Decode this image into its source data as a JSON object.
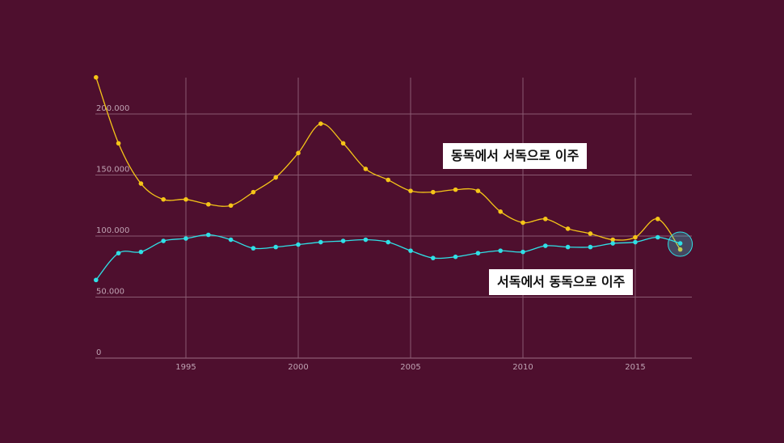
{
  "chart_data": {
    "type": "line",
    "x": [
      1991,
      1992,
      1993,
      1994,
      1995,
      1996,
      1997,
      1998,
      1999,
      2000,
      2001,
      2002,
      2003,
      2004,
      2005,
      2006,
      2007,
      2008,
      2009,
      2010,
      2011,
      2012,
      2013,
      2014,
      2015,
      2016,
      2017
    ],
    "series": [
      {
        "name": "동독에서 서독으로 이주",
        "color": "#f5c518",
        "values": [
          230000,
          176000,
          143000,
          130000,
          130000,
          126000,
          125000,
          136000,
          148000,
          168000,
          192000,
          176000,
          155000,
          146000,
          137000,
          136000,
          138000,
          137000,
          120000,
          111000,
          114000,
          106000,
          102000,
          97000,
          99000,
          114000,
          89000
        ]
      },
      {
        "name": "서독에서 동독으로 이주",
        "color": "#2fe0e6",
        "values": [
          64000,
          86000,
          87000,
          96000,
          98000,
          101000,
          97000,
          90000,
          91000,
          93000,
          95000,
          96000,
          97000,
          95000,
          88000,
          82000,
          83000,
          86000,
          88000,
          87000,
          92000,
          91000,
          91000,
          94000,
          95000,
          99000,
          94000
        ]
      }
    ],
    "y_ticks": [
      0,
      50000,
      100000,
      150000,
      200000
    ],
    "y_tick_labels": [
      "0",
      "50.000",
      "100.000",
      "150.000",
      "200.000"
    ],
    "x_ticks": [
      1995,
      2000,
      2005,
      2010,
      2015
    ],
    "x_tick_labels": [
      "1995",
      "2000",
      "2005",
      "2010",
      "2015"
    ],
    "xlim": [
      1991,
      2017.5
    ],
    "ylim": [
      0,
      230000
    ],
    "grid": true,
    "highlight_year": 2017,
    "title": "",
    "xlabel": "",
    "ylabel": ""
  },
  "annotations": {
    "east_to_west": "동독에서 서독으로 이주",
    "west_to_east": "서독에서 동독으로 이주"
  },
  "colors": {
    "background": "#4e0f2e",
    "grid": "#8a5a72",
    "east_to_west_line": "#f5c518",
    "west_to_east_line": "#2fe0e6"
  }
}
